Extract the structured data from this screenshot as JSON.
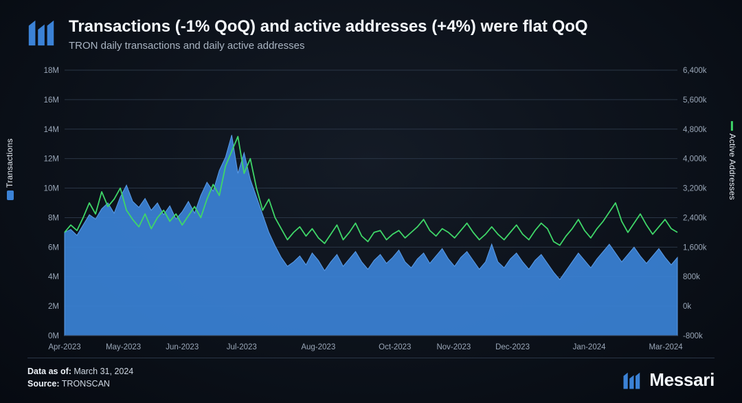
{
  "header": {
    "title": "Transactions (-1% QoQ) and active addresses (+4%) were flat QoQ",
    "subtitle": "TRON daily transactions and daily active addresses"
  },
  "footer": {
    "data_as_of_label": "Data as of:",
    "data_as_of_value": "March 31, 2024",
    "source_label": "Source:",
    "source_value": "TRONSCAN",
    "brand": "Messari"
  },
  "chart": {
    "type": "dual-axis-area-line",
    "background_color": "#0d131c",
    "grid_color": "#2a3646",
    "tick_font_size": 11.5,
    "tick_color": "#9aa7b8",
    "left_axis": {
      "label": "Transactions",
      "label_color": "#e8eef5",
      "swatch_color": "#3b82d6",
      "min": 0,
      "max": 18,
      "unit_suffix": "M",
      "ticks": [
        0,
        2,
        4,
        6,
        8,
        10,
        12,
        14,
        16,
        18
      ]
    },
    "right_axis": {
      "label": "Active Addresses",
      "label_color": "#e8eef5",
      "swatch_color": "#3fd668",
      "min": -800,
      "max": 6400,
      "unit_suffix": "k",
      "ticks": [
        -800,
        0,
        800,
        1600,
        2400,
        3200,
        4000,
        4800,
        5600,
        6400
      ]
    },
    "x_axis": {
      "labels": [
        "Apr-2023",
        "May-2023",
        "Jun-2023",
        "Jul-2023",
        "Aug-2023",
        "Oct-2023",
        "Nov-2023",
        "Dec-2023",
        "Jan-2024",
        "Mar-2024"
      ],
      "positions": [
        0.0,
        0.096,
        0.192,
        0.289,
        0.414,
        0.539,
        0.635,
        0.731,
        0.856,
        0.981
      ]
    },
    "series_transactions": {
      "type": "area",
      "fill_color": "#3b82d6",
      "fill_opacity": 0.92,
      "stroke_color": "#5a9ce8",
      "stroke_width": 1,
      "values_M": [
        7.0,
        7.2,
        6.8,
        7.5,
        8.2,
        7.9,
        8.6,
        9.0,
        8.3,
        9.4,
        10.2,
        9.1,
        8.7,
        9.3,
        8.5,
        9.0,
        8.2,
        8.8,
        7.9,
        8.4,
        9.1,
        8.3,
        9.5,
        10.4,
        9.8,
        11.2,
        12.1,
        13.6,
        11.0,
        12.4,
        10.6,
        9.4,
        8.2,
        7.0,
        6.1,
        5.3,
        4.7,
        5.0,
        5.4,
        4.8,
        5.6,
        5.1,
        4.4,
        5.0,
        5.5,
        4.7,
        5.2,
        5.7,
        5.0,
        4.5,
        5.1,
        5.5,
        4.9,
        5.3,
        5.8,
        5.0,
        4.6,
        5.2,
        5.6,
        4.9,
        5.4,
        5.9,
        5.2,
        4.7,
        5.3,
        5.7,
        5.1,
        4.5,
        5.0,
        6.2,
        5.0,
        4.6,
        5.2,
        5.6,
        5.0,
        4.5,
        5.1,
        5.5,
        4.9,
        4.3,
        3.8,
        4.4,
        5.0,
        5.6,
        5.1,
        4.6,
        5.2,
        5.7,
        6.2,
        5.6,
        5.0,
        5.5,
        6.0,
        5.4,
        4.9,
        5.4,
        5.9,
        5.3,
        4.8,
        5.3
      ]
    },
    "series_active_addresses": {
      "type": "line",
      "stroke_color": "#3fd668",
      "stroke_width": 1.8,
      "values_k": [
        2000,
        2200,
        2050,
        2400,
        2800,
        2500,
        3100,
        2700,
        2900,
        3200,
        2600,
        2350,
        2150,
        2500,
        2100,
        2400,
        2600,
        2300,
        2500,
        2200,
        2450,
        2700,
        2400,
        2900,
        3300,
        3000,
        3800,
        4200,
        4600,
        3600,
        4000,
        3200,
        2600,
        2900,
        2400,
        2100,
        1800,
        2000,
        2150,
        1900,
        2100,
        1850,
        1700,
        1950,
        2200,
        1800,
        2000,
        2250,
        1900,
        1750,
        2000,
        2050,
        1800,
        1950,
        2050,
        1850,
        2000,
        2150,
        2350,
        2050,
        1900,
        2100,
        2000,
        1850,
        2050,
        2250,
        2000,
        1800,
        1950,
        2150,
        1950,
        1800,
        2000,
        2200,
        1950,
        1800,
        2050,
        2250,
        2100,
        1750,
        1650,
        1900,
        2100,
        2350,
        2050,
        1850,
        2100,
        2300,
        2550,
        2800,
        2300,
        2000,
        2250,
        2500,
        2200,
        1950,
        2150,
        2350,
        2100,
        2000
      ]
    }
  },
  "brand_color": "#3b82d6"
}
